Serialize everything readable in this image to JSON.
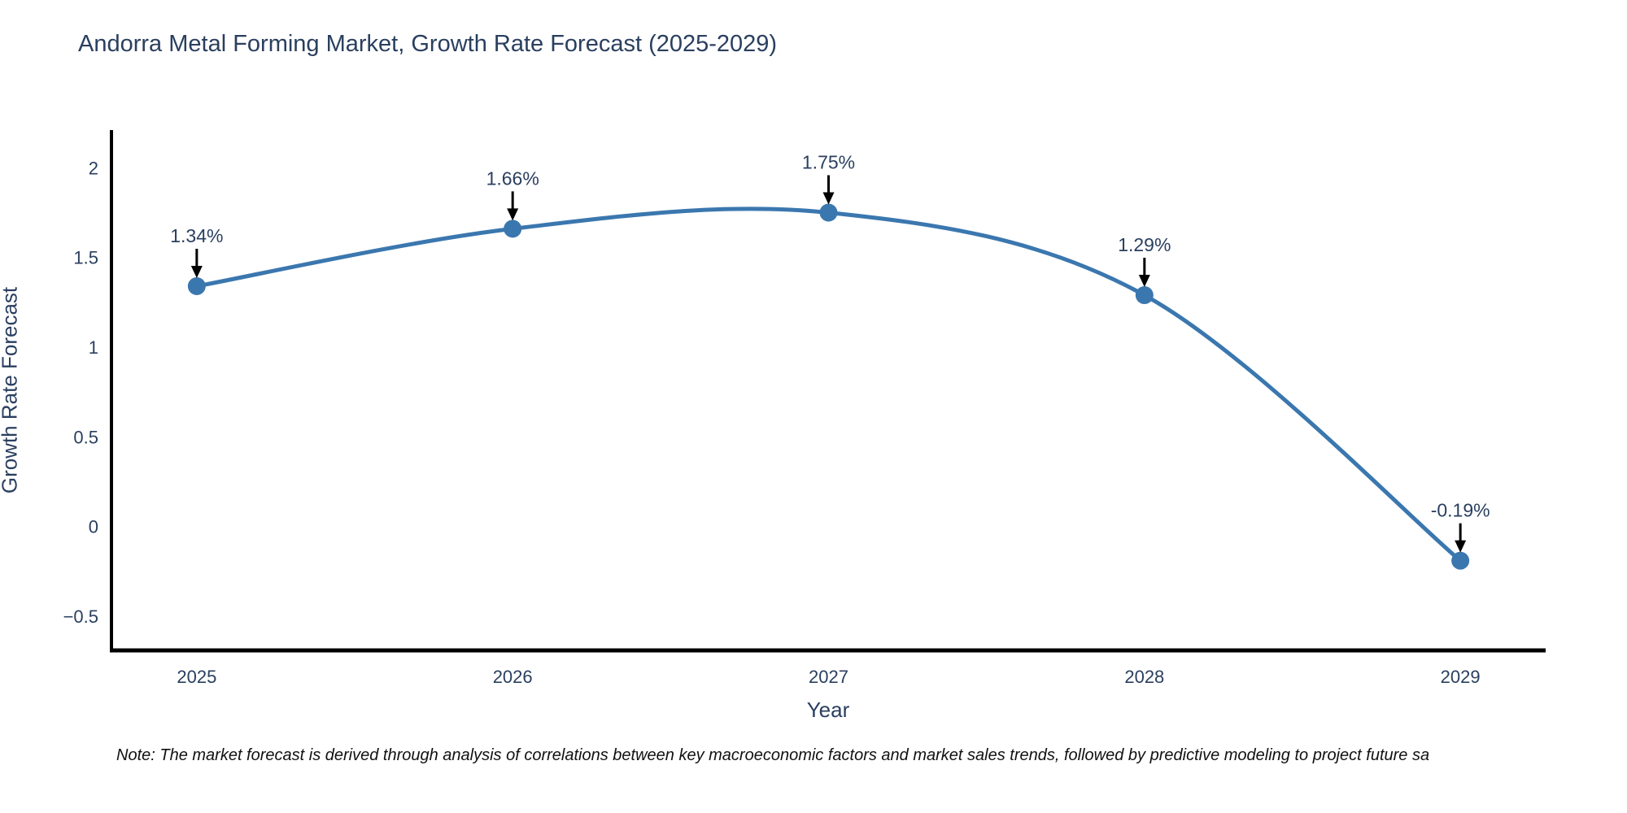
{
  "page": {
    "background": "#ffffff"
  },
  "colors": {
    "line": "#3b77af",
    "marker": "#3b77af",
    "axis": "#000000",
    "arrow": "#000000",
    "text": "#2a3f5f",
    "note_text": "#111111"
  },
  "note": {
    "text": "Note: The market forecast is derived through analysis of correlations between key macroeconomic factors and market sales trends, followed by predictive modeling to project future sa"
  },
  "chart_data": {
    "type": "line",
    "title": "Andorra Metal Forming Market, Growth Rate Forecast (2025-2029)",
    "xlabel": "Year",
    "ylabel": "Growth Rate Forecast",
    "x": [
      2025,
      2026,
      2027,
      2028,
      2029
    ],
    "values": [
      1.34,
      1.66,
      1.75,
      1.29,
      -0.19
    ],
    "point_labels": [
      "1.34%",
      "1.66%",
      "1.75%",
      "1.29%",
      "-0.19%"
    ],
    "x_tick_labels": [
      "2025",
      "2026",
      "2027",
      "2028",
      "2029"
    ],
    "y_ticks": [
      2,
      1.5,
      1,
      0.5,
      0,
      -0.5
    ],
    "y_tick_labels": [
      "2",
      "1.5",
      "1",
      "0.5",
      "0",
      "−0.5"
    ],
    "xlim": [
      2024.73,
      2029.27
    ],
    "ylim": [
      -0.69,
      2.21
    ],
    "grid": false,
    "legend": "none",
    "line_shape": "spline",
    "markers": true,
    "annotations_have_arrows": true
  }
}
